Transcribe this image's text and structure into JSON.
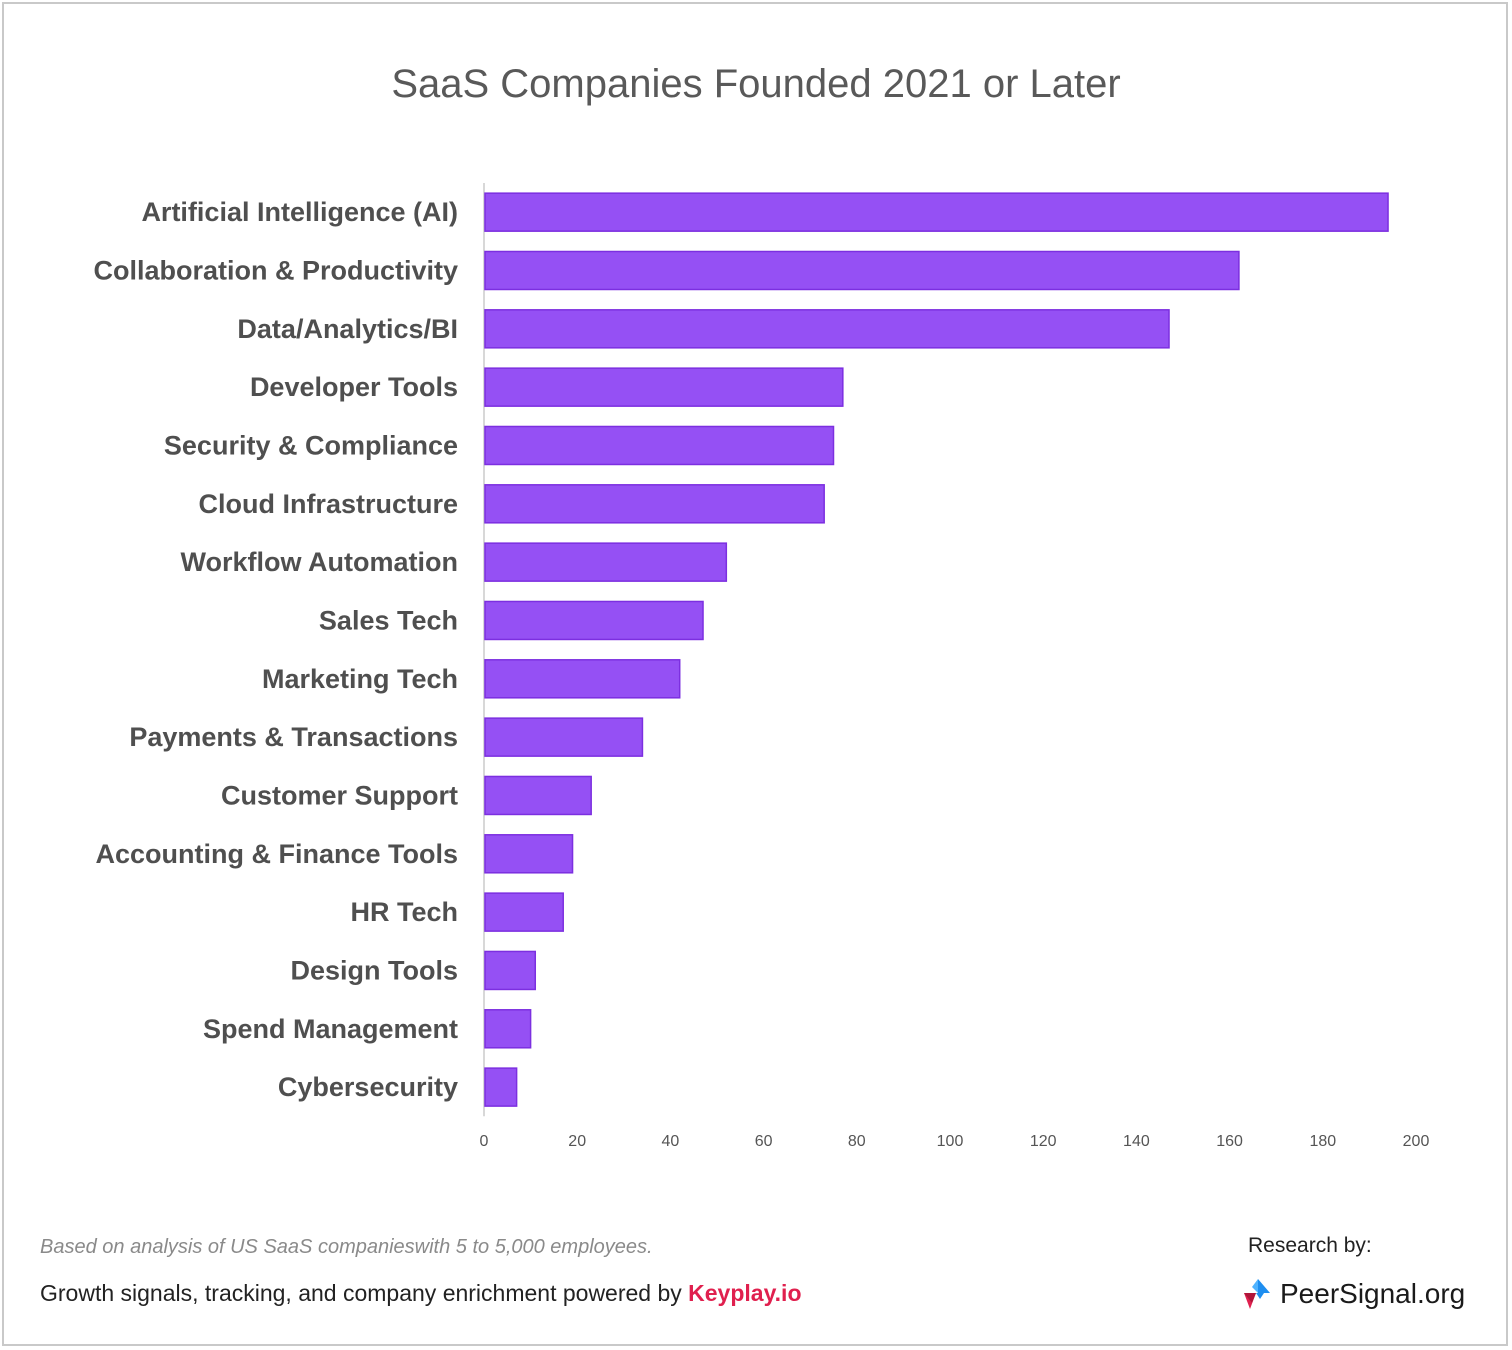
{
  "chart_data": {
    "type": "bar",
    "orientation": "horizontal",
    "title": "SaaS Companies Founded 2021 or Later",
    "categories": [
      "Artificial Intelligence (AI)",
      "Collaboration & Productivity",
      "Data/Analytics/BI",
      "Developer Tools",
      "Security & Compliance",
      "Cloud Infrastructure",
      "Workflow Automation",
      "Sales Tech",
      "Marketing Tech",
      "Payments & Transactions",
      "Customer Support",
      "Accounting & Finance Tools",
      "HR Tech",
      "Design Tools",
      "Spend Management",
      "Cybersecurity"
    ],
    "values": [
      194,
      162,
      147,
      77,
      75,
      73,
      52,
      47,
      42,
      34,
      23,
      19,
      17,
      11,
      10,
      7
    ],
    "xlim": [
      0,
      200
    ],
    "xticks": [
      "0",
      "20",
      "40",
      "60",
      "80",
      "100",
      "120",
      "140",
      "160",
      "180",
      "200"
    ],
    "xlabel": "",
    "ylabel": "",
    "grid": false,
    "bar_color": "#9550f4",
    "bar_edge_color": "#7c2fe0"
  },
  "footer": {
    "note": "Based on analysis of US SaaS companieswith 5 to 5,000 employees.",
    "powered_prefix": "Growth signals, tracking, and company enrichment powered by",
    "powered_brand": "Keyplay.io",
    "research_label": "Research by:",
    "logo_text": "PeerSignal.org",
    "brand_color": "#e0204e"
  }
}
